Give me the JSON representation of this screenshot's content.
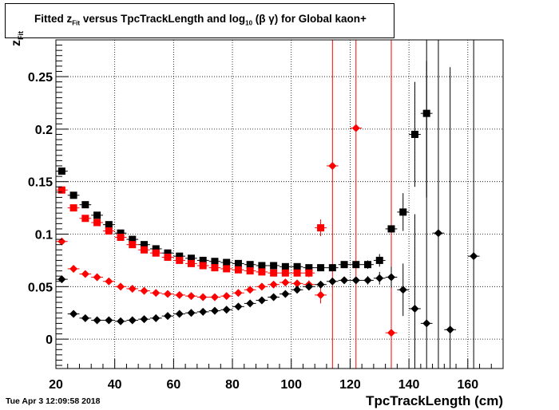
{
  "title": {
    "pre": "Fitted  z",
    "sub1": "Fit",
    "mid": "  versus TpcTrackLength and log",
    "sub2": "10",
    "post": " (β γ) for Global kaon+"
  },
  "timestamp": "Tue Apr  3 12:09:58 2018",
  "chart_data": {
    "type": "scatter",
    "title": "Fitted  zFit  versus TpcTrackLength and log10 (β γ) for Global kaon+",
    "xlabel": "TpcTrackLength (cm)",
    "ylabel_main": "z",
    "ylabel_sub": "Fit",
    "xlim": [
      20,
      172
    ],
    "ylim": [
      -0.028,
      0.285
    ],
    "x_ticks": [
      20,
      40,
      60,
      80,
      100,
      120,
      140,
      160
    ],
    "y_ticks": [
      0,
      0.05,
      0.1,
      0.15,
      0.2,
      0.25
    ],
    "y_tick_labels": [
      "0",
      "0.05",
      "0.1",
      "0.15",
      "0.2",
      "0.25"
    ],
    "grid": true,
    "series": [
      {
        "marker": "square",
        "color": "#000000",
        "points": [
          [
            22,
            0.16
          ],
          [
            26,
            0.137
          ],
          [
            30,
            0.128
          ],
          [
            34,
            0.118
          ],
          [
            38,
            0.109
          ],
          [
            42,
            0.101
          ],
          [
            46,
            0.095
          ],
          [
            50,
            0.09
          ],
          [
            54,
            0.086
          ],
          [
            58,
            0.082
          ],
          [
            62,
            0.079
          ],
          [
            66,
            0.077
          ],
          [
            70,
            0.075
          ],
          [
            74,
            0.074
          ],
          [
            78,
            0.073
          ],
          [
            82,
            0.072
          ],
          [
            86,
            0.071
          ],
          [
            90,
            0.07
          ],
          [
            94,
            0.07
          ],
          [
            98,
            0.069
          ],
          [
            102,
            0.069
          ],
          [
            106,
            0.068
          ],
          [
            110,
            0.068
          ],
          [
            114,
            0.068
          ],
          [
            118,
            0.071
          ],
          [
            122,
            0.071
          ],
          [
            126,
            0.071
          ],
          [
            130,
            0.075
          ],
          [
            134,
            0.105
          ],
          [
            138,
            0.121
          ],
          [
            142,
            0.195
          ],
          [
            146,
            0.215
          ]
        ],
        "yerr": [
          0.002,
          0.002,
          0.002,
          0.002,
          0.002,
          0.002,
          0.002,
          0.002,
          0.002,
          0.002,
          0.002,
          0.002,
          0.002,
          0.002,
          0.002,
          0.002,
          0.002,
          0.002,
          0.002,
          0.002,
          0.002,
          0.002,
          0.002,
          0.002,
          0.003,
          0.003,
          0.004,
          0.006,
          0.01,
          0.018,
          0.05,
          0.08
        ]
      },
      {
        "marker": "square",
        "color": "#ff0000",
        "points": [
          [
            22,
            0.142
          ],
          [
            26,
            0.125
          ],
          [
            30,
            0.115
          ],
          [
            34,
            0.111
          ],
          [
            38,
            0.103
          ],
          [
            42,
            0.097
          ],
          [
            46,
            0.09
          ],
          [
            50,
            0.085
          ],
          [
            54,
            0.082
          ],
          [
            58,
            0.078
          ],
          [
            62,
            0.075
          ],
          [
            66,
            0.072
          ],
          [
            70,
            0.07
          ],
          [
            74,
            0.068
          ],
          [
            78,
            0.067
          ],
          [
            82,
            0.066
          ],
          [
            86,
            0.065
          ],
          [
            90,
            0.064
          ],
          [
            94,
            0.063
          ],
          [
            98,
            0.063
          ],
          [
            102,
            0.063
          ],
          [
            106,
            0.063
          ],
          [
            110,
            0.106
          ]
        ],
        "yerr": [
          0.002,
          0.002,
          0.002,
          0.002,
          0.002,
          0.002,
          0.002,
          0.002,
          0.002,
          0.002,
          0.002,
          0.002,
          0.002,
          0.002,
          0.002,
          0.002,
          0.002,
          0.002,
          0.002,
          0.003,
          0.003,
          0.004,
          0.008
        ]
      },
      {
        "marker": "diamond",
        "color": "#ff0000",
        "points": [
          [
            22,
            0.093
          ],
          [
            26,
            0.067
          ],
          [
            30,
            0.062
          ],
          [
            34,
            0.059
          ],
          [
            38,
            0.055
          ],
          [
            42,
            0.05
          ],
          [
            46,
            0.048
          ],
          [
            50,
            0.046
          ],
          [
            54,
            0.044
          ],
          [
            58,
            0.043
          ],
          [
            62,
            0.042
          ],
          [
            66,
            0.041
          ],
          [
            70,
            0.04
          ],
          [
            74,
            0.04
          ],
          [
            78,
            0.041
          ],
          [
            82,
            0.044
          ],
          [
            86,
            0.047
          ],
          [
            90,
            0.05
          ],
          [
            94,
            0.052
          ],
          [
            98,
            0.054
          ],
          [
            102,
            0.053
          ],
          [
            106,
            0.052
          ],
          [
            110,
            0.042
          ],
          [
            114,
            0.165
          ],
          [
            122,
            0.201
          ],
          [
            134,
            0.006
          ]
        ],
        "yerr": [
          0.002,
          0.002,
          0.002,
          0.002,
          0.002,
          0.002,
          0.002,
          0.002,
          0.002,
          0.002,
          0.002,
          0.002,
          0.002,
          0.002,
          0.002,
          0.002,
          0.002,
          0.002,
          0.002,
          0.003,
          0.003,
          0.004,
          0.008,
          0.5,
          0.5,
          0.5
        ]
      },
      {
        "marker": "diamond",
        "color": "#000000",
        "points": [
          [
            22,
            0.057
          ],
          [
            26,
            0.024
          ],
          [
            30,
            0.02
          ],
          [
            34,
            0.018
          ],
          [
            38,
            0.018
          ],
          [
            42,
            0.017
          ],
          [
            46,
            0.018
          ],
          [
            50,
            0.019
          ],
          [
            54,
            0.02
          ],
          [
            58,
            0.022
          ],
          [
            62,
            0.024
          ],
          [
            66,
            0.025
          ],
          [
            70,
            0.026
          ],
          [
            74,
            0.027
          ],
          [
            78,
            0.028
          ],
          [
            82,
            0.031
          ],
          [
            86,
            0.034
          ],
          [
            90,
            0.037
          ],
          [
            94,
            0.04
          ],
          [
            98,
            0.043
          ],
          [
            102,
            0.047
          ],
          [
            106,
            0.05
          ],
          [
            110,
            0.052
          ],
          [
            114,
            0.055
          ],
          [
            118,
            0.056
          ],
          [
            122,
            0.056
          ],
          [
            126,
            0.056
          ],
          [
            130,
            0.058
          ],
          [
            134,
            0.059
          ],
          [
            138,
            0.047
          ],
          [
            142,
            0.029
          ],
          [
            146,
            0.015
          ],
          [
            150,
            0.101
          ],
          [
            154,
            0.009
          ],
          [
            162,
            0.079
          ]
        ],
        "yerr": [
          0.002,
          0.002,
          0.002,
          0.002,
          0.002,
          0.002,
          0.002,
          0.002,
          0.002,
          0.002,
          0.002,
          0.002,
          0.002,
          0.002,
          0.002,
          0.002,
          0.002,
          0.002,
          0.002,
          0.002,
          0.002,
          0.002,
          0.002,
          0.003,
          0.003,
          0.003,
          0.004,
          0.006,
          0.01,
          0.025,
          0.09,
          0.25,
          0.5,
          0.25,
          0.5
        ]
      }
    ]
  }
}
